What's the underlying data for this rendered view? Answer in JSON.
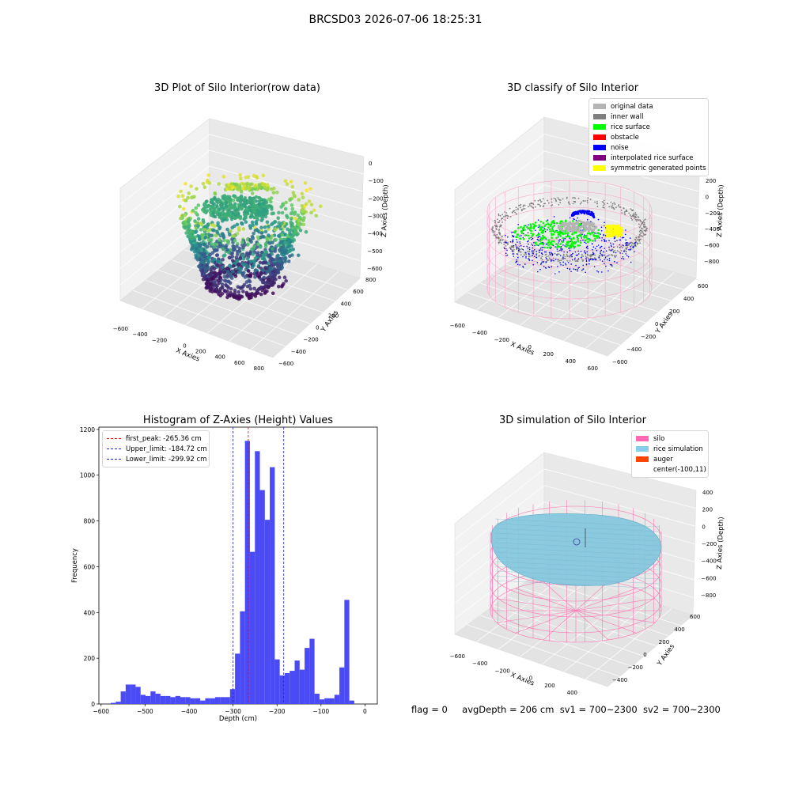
{
  "suptitle": "BRCSD03 2026-07-06 18:25:31",
  "colors": {
    "hist_bar": "#4b4bf6",
    "peak_line": "#ff0000",
    "limit_line": "#1c1cc8",
    "silo_wire": "#ff77b4",
    "rice_fill": "#87c8df",
    "original": "#b4b4b4",
    "inner_wall": "#7f7f7f",
    "rice_surface": "#00ff00",
    "obstacle": "#ff0000",
    "noise": "#0000ff",
    "interpolated": "#800080",
    "symmetric": "#ffff00",
    "auger": "#ff4500"
  },
  "chart_data": [
    {
      "type": "scatter",
      "projection": "3d",
      "title": "3D Plot of Silo Interior(row data)",
      "xlabel": "X Axies",
      "ylabel": "Y Axies",
      "zlabel": "Z Axies (Depth)",
      "xticks": [
        "−600",
        "−400",
        "−200",
        "0",
        "200",
        "400",
        "600",
        "800"
      ],
      "yticks": [
        "−600",
        "−400",
        "−200",
        "0",
        "200",
        "400",
        "600",
        "800"
      ],
      "zticks": [
        "0",
        "−100",
        "−200",
        "−300",
        "−400",
        "−500",
        "−600"
      ],
      "zlim": [
        -600,
        0
      ],
      "colormap": "viridis"
    },
    {
      "type": "scatter",
      "projection": "3d",
      "title": "3D classify of Silo Interior",
      "xlabel": "X Axies",
      "ylabel": "Y Axies",
      "zlabel": "Z Axies (Depth)",
      "xticks": [
        "−600",
        "−400",
        "−200",
        "0",
        "200",
        "400",
        "600"
      ],
      "yticks": [
        "−600",
        "−400",
        "−200",
        "0",
        "200",
        "400",
        "600"
      ],
      "zticks": [
        "200",
        "0",
        "−200",
        "−400",
        "−600",
        "−800"
      ],
      "zlim": [
        -800,
        200
      ],
      "legend_position": "top-right",
      "legend": [
        {
          "label": "original data",
          "color": "#b4b4b4"
        },
        {
          "label": "inner wall",
          "color": "#7f7f7f"
        },
        {
          "label": "rice surface",
          "color": "#00ff00"
        },
        {
          "label": "obstacle",
          "color": "#ff0000"
        },
        {
          "label": "noise",
          "color": "#0000ff"
        },
        {
          "label": "interpolated rice surface",
          "color": "#800080"
        },
        {
          "label": "symmetric generated points",
          "color": "#ffff00"
        }
      ]
    },
    {
      "type": "bar",
      "title": "Histogram of Z-Axies (Height) Values",
      "xlabel": "Depth (cm)",
      "ylabel": "Frequency",
      "xlim": [
        -605,
        28
      ],
      "ylim": [
        0,
        1210
      ],
      "xticks": [
        -600,
        -500,
        -400,
        -300,
        -200,
        -100,
        0
      ],
      "xtick_labels": [
        "−600",
        "−500",
        "−400",
        "−300",
        "−200",
        "−100",
        "0"
      ],
      "yticks": [
        0,
        200,
        400,
        600,
        800,
        1000,
        1200
      ],
      "bin_start": -578,
      "bin_width": 11.3,
      "values": [
        5,
        10,
        55,
        85,
        85,
        75,
        40,
        35,
        55,
        45,
        35,
        35,
        30,
        35,
        30,
        30,
        25,
        25,
        15,
        25,
        25,
        30,
        30,
        30,
        65,
        220,
        405,
        1150,
        665,
        1105,
        935,
        805,
        1035,
        195,
        125,
        135,
        145,
        190,
        150,
        245,
        285,
        45,
        20,
        25,
        25,
        40,
        160,
        455,
        15
      ],
      "vlines": [
        {
          "label": "first_peak: -265.36 cm",
          "x": -265.36,
          "color": "#ff0000"
        },
        {
          "label": "Upper_limit: -184.72 cm",
          "x": -184.72,
          "color": "#1c1cc8"
        },
        {
          "label": "Lower_limit: -299.92 cm",
          "x": -299.92,
          "color": "#1c1cc8"
        }
      ],
      "legend_position": "top-left"
    },
    {
      "type": "surface",
      "projection": "3d",
      "title": "3D simulation of Silo Interior",
      "xlabel": "X Axies",
      "ylabel": "Y Axies",
      "zlabel": "Z Axies (Depth)",
      "xticks": [
        "−600",
        "−400",
        "−200",
        "0",
        "200",
        "400"
      ],
      "yticks": [
        "−400",
        "−200",
        "0",
        "200",
        "400",
        "600"
      ],
      "zticks": [
        "400",
        "200",
        "0",
        "−200",
        "−400",
        "−600",
        "−800"
      ],
      "zlim": [
        -800,
        400
      ],
      "legend_position": "top-right",
      "legend": [
        {
          "label": "silo",
          "color": "#ff69b4"
        },
        {
          "label": "rice simulation",
          "color": "#87ceeb"
        },
        {
          "label": "auger",
          "color": "#ff4500"
        },
        {
          "label": "center(-100,11)",
          "color": ""
        }
      ]
    }
  ],
  "footer": {
    "flag": "flag = 0",
    "avg_depth": "avgDepth = 206 cm",
    "sv1": "sv1 = 700~2300",
    "sv2": "sv2 = 700~2300"
  }
}
